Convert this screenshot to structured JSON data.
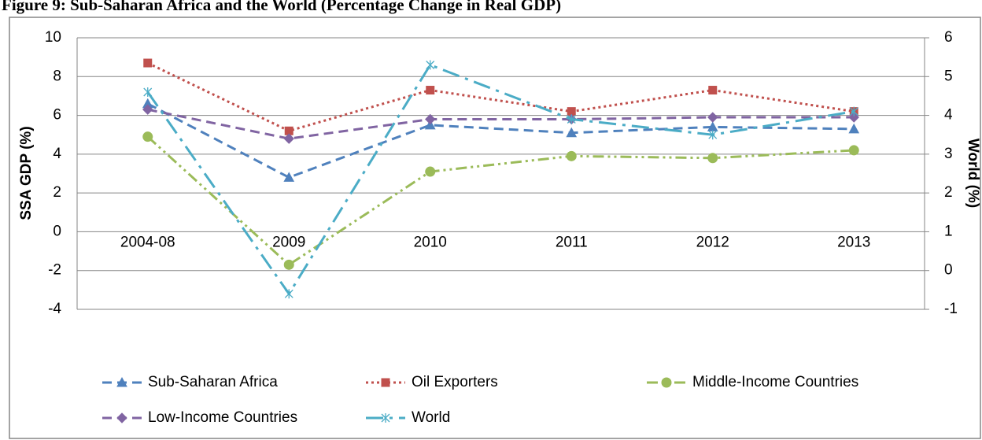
{
  "chart_data": {
    "type": "line",
    "title": "Figure 9: Sub-Saharan Africa and the World (Percentage Change in Real GDP)",
    "y_label": "SSA GDP (%)",
    "y2_label": "World (%)",
    "categories": [
      "2004-08",
      "2009",
      "2010",
      "2011",
      "2012",
      "2013"
    ],
    "series": [
      {
        "name": "Sub-Saharan Africa",
        "color": "#4f81bd",
        "marker": "triangle",
        "dash": "dashed",
        "values": [
          6.6,
          2.8,
          5.5,
          5.1,
          5.4,
          5.3
        ]
      },
      {
        "name": "Oil Exporters",
        "color": "#c0504d",
        "marker": "square",
        "dash": "dotted",
        "values": [
          8.7,
          5.2,
          7.3,
          6.2,
          7.3,
          6.2
        ]
      },
      {
        "name": "Middle-Income Countries",
        "color": "#9bbb59",
        "marker": "circle",
        "dash": "dash-dot-dot",
        "values": [
          4.9,
          -1.7,
          3.1,
          3.9,
          3.8,
          4.2
        ]
      },
      {
        "name": "Low-Income Countries",
        "color": "#8064a2",
        "marker": "diamond",
        "dash": "dashed",
        "values": [
          6.3,
          4.8,
          5.8,
          5.8,
          5.9,
          5.9
        ]
      },
      {
        "name": "World",
        "color": "#4bacc6",
        "marker": "asterisk",
        "dash": "long-dash-dot",
        "axis": "y2",
        "values": [
          4.6,
          -0.6,
          5.3,
          3.9,
          3.5,
          4.1
        ]
      }
    ],
    "ylim": [
      -4,
      10
    ],
    "yticks": [
      -4,
      -2,
      0,
      2,
      4,
      6,
      8,
      10
    ],
    "y2lim": [
      -1,
      6
    ],
    "y2ticks": [
      -1,
      0,
      1,
      2,
      3,
      4,
      5,
      6
    ],
    "grid": true,
    "legend": "bottom"
  }
}
